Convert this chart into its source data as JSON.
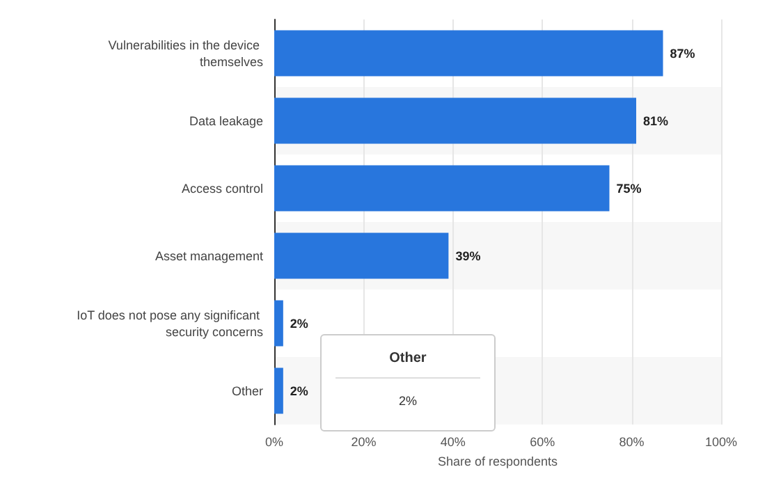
{
  "chart_data": {
    "type": "bar",
    "orientation": "horizontal",
    "categories": [
      "Vulnerabilities in the device themselves",
      "Data leakage",
      "Access control",
      "Asset management",
      "IoT does not pose any significant security concerns",
      "Other"
    ],
    "values": [
      87,
      81,
      75,
      39,
      2,
      2
    ],
    "color": "#2876dd",
    "value_labels": [
      "87%",
      "81%",
      "75%",
      "39%",
      "2%",
      "2%"
    ],
    "xlabel": "Share of respondents",
    "xlim": [
      0,
      100
    ],
    "xticks": [
      {
        "value": 0,
        "label": "0%"
      },
      {
        "value": 20,
        "label": "20%"
      },
      {
        "value": 40,
        "label": "40%"
      },
      {
        "value": 60,
        "label": "60%"
      },
      {
        "value": 80,
        "label": "80%"
      },
      {
        "value": 100,
        "label": "100%"
      }
    ],
    "grid": "x",
    "annotations": [
      "Other",
      "2%"
    ]
  }
}
